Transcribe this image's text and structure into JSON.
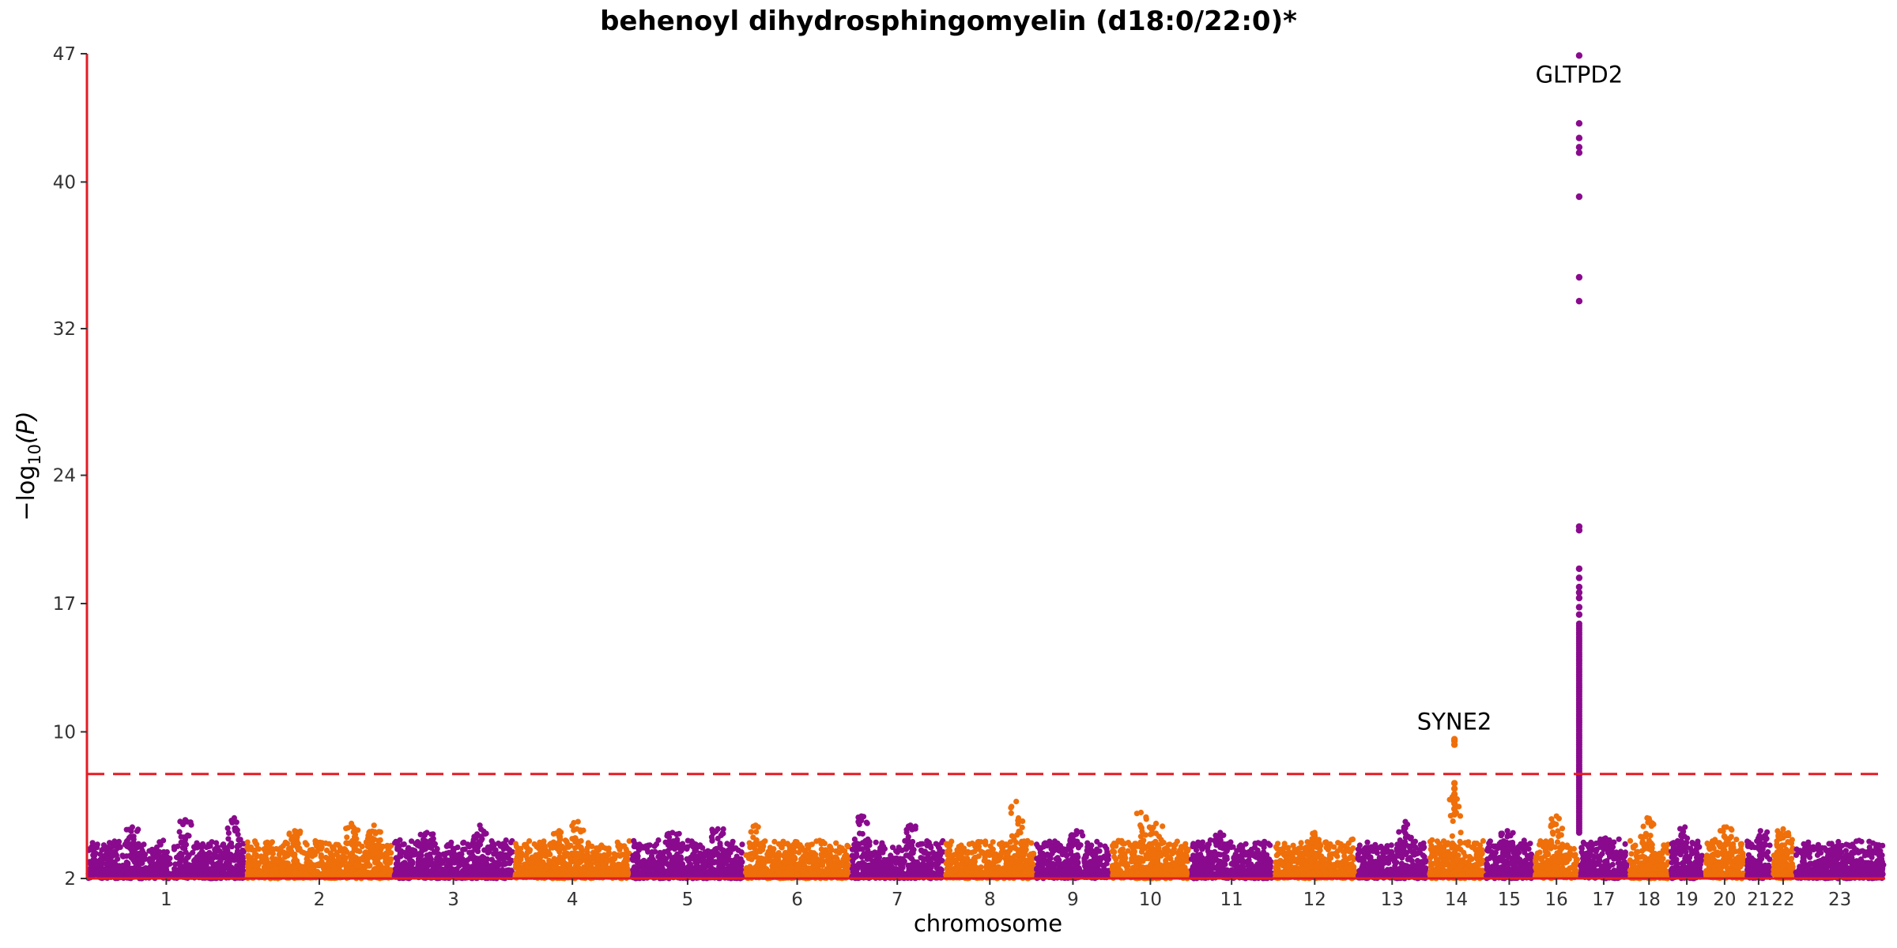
{
  "chart_data": {
    "type": "scatter",
    "title": "behenoyl dihydrosphingomyelin (d18:0/22:0)*",
    "xlabel": "chromosome",
    "ylabel": "−log10(P)",
    "ylabel_main": "−log",
    "ylabel_sub": "10",
    "ylabel_paren": "(P)",
    "yticks": [
      "2",
      "10",
      "17",
      "24",
      "32",
      "40",
      "47"
    ],
    "yrange": [
      2,
      47
    ],
    "significance_threshold": 7.7,
    "colors": {
      "purple": "#8a0a8e",
      "orange": "#ef6f0a",
      "axis": "#e51b24",
      "threshold": "#e51b24"
    },
    "chromosomes": [
      {
        "label": "1",
        "start": 0.0,
        "end": 4.2,
        "color": "purple",
        "peaks": [
          {
            "x": 1.2,
            "y": 4.8
          },
          {
            "x": 2.6,
            "y": 5.2
          },
          {
            "x": 3.9,
            "y": 5.3
          }
        ]
      },
      {
        "label": "2",
        "start": 4.2,
        "end": 8.1,
        "color": "orange",
        "peaks": [
          {
            "x": 5.5,
            "y": 4.6
          },
          {
            "x": 7.0,
            "y": 5.0
          },
          {
            "x": 7.6,
            "y": 4.9
          }
        ]
      },
      {
        "label": "3",
        "start": 8.1,
        "end": 11.3,
        "color": "purple",
        "peaks": [
          {
            "x": 9.0,
            "y": 4.5
          },
          {
            "x": 10.4,
            "y": 4.9
          }
        ]
      },
      {
        "label": "4",
        "start": 11.3,
        "end": 14.4,
        "color": "orange",
        "peaks": [
          {
            "x": 12.5,
            "y": 4.6
          },
          {
            "x": 13.0,
            "y": 5.1
          }
        ]
      },
      {
        "label": "5",
        "start": 14.4,
        "end": 17.4,
        "color": "purple",
        "peaks": [
          {
            "x": 15.5,
            "y": 4.5
          },
          {
            "x": 16.7,
            "y": 4.7
          }
        ]
      },
      {
        "label": "6",
        "start": 17.4,
        "end": 20.2,
        "color": "orange",
        "peaks": [
          {
            "x": 17.7,
            "y": 4.9
          }
        ]
      },
      {
        "label": "7",
        "start": 20.2,
        "end": 22.7,
        "color": "purple",
        "peaks": [
          {
            "x": 20.5,
            "y": 5.4
          },
          {
            "x": 21.8,
            "y": 4.9
          }
        ]
      },
      {
        "label": "8",
        "start": 22.7,
        "end": 25.1,
        "color": "orange",
        "peaks": [
          {
            "x": 24.6,
            "y": 6.2
          }
        ]
      },
      {
        "label": "9",
        "start": 25.1,
        "end": 27.1,
        "color": "purple",
        "peaks": [
          {
            "x": 26.2,
            "y": 4.6
          }
        ]
      },
      {
        "label": "10",
        "start": 27.1,
        "end": 29.2,
        "color": "orange",
        "peaks": [
          {
            "x": 27.9,
            "y": 5.6
          },
          {
            "x": 28.3,
            "y": 5.0
          }
        ]
      },
      {
        "label": "11",
        "start": 29.2,
        "end": 31.4,
        "color": "purple",
        "peaks": [
          {
            "x": 30.0,
            "y": 4.5
          }
        ]
      },
      {
        "label": "12",
        "start": 31.4,
        "end": 33.6,
        "color": "orange",
        "peaks": [
          {
            "x": 32.5,
            "y": 4.5
          }
        ]
      },
      {
        "label": "13",
        "start": 33.6,
        "end": 35.5,
        "color": "purple",
        "peaks": [
          {
            "x": 34.9,
            "y": 5.1
          }
        ]
      },
      {
        "label": "14",
        "start": 35.5,
        "end": 37.0,
        "color": "orange",
        "peaks": [
          {
            "x": 36.2,
            "y": 6.6
          }
        ]
      },
      {
        "label": "15",
        "start": 37.0,
        "end": 38.3,
        "color": "purple",
        "peaks": [
          {
            "x": 37.6,
            "y": 4.6
          }
        ]
      },
      {
        "label": "16",
        "start": 38.3,
        "end": 39.5,
        "color": "orange",
        "peaks": [
          {
            "x": 38.9,
            "y": 5.4
          }
        ]
      },
      {
        "label": "17",
        "start": 39.5,
        "end": 40.8,
        "color": "purple",
        "peaks": [
          {
            "x": 40.2,
            "y": 4.2
          }
        ]
      },
      {
        "label": "18",
        "start": 40.8,
        "end": 41.9,
        "color": "orange",
        "peaks": [
          {
            "x": 41.3,
            "y": 5.3
          }
        ]
      },
      {
        "label": "19",
        "start": 41.9,
        "end": 42.8,
        "color": "purple",
        "peaks": [
          {
            "x": 42.3,
            "y": 4.8
          }
        ]
      },
      {
        "label": "20",
        "start": 42.8,
        "end": 43.9,
        "color": "orange",
        "peaks": [
          {
            "x": 43.4,
            "y": 4.8
          }
        ]
      },
      {
        "label": "21",
        "start": 43.9,
        "end": 44.6,
        "color": "purple",
        "peaks": [
          {
            "x": 44.3,
            "y": 4.6
          }
        ]
      },
      {
        "label": "22",
        "start": 44.6,
        "end": 45.2,
        "color": "orange",
        "peaks": [
          {
            "x": 44.9,
            "y": 4.7
          }
        ]
      },
      {
        "label": "23",
        "start": 45.2,
        "end": 47.6,
        "color": "purple",
        "peaks": [
          {
            "x": 46.2,
            "y": 3.3
          }
        ]
      }
    ],
    "gaps": [
      [
        2.2,
        2.3
      ],
      [
        26.3,
        26.4
      ]
    ],
    "hits": [
      {
        "chromosome": "14",
        "label": "SYNE2",
        "x": 36.2,
        "color": "orange",
        "y_values": [
          9.6,
          9.5,
          9.3,
          7.2,
          6.9,
          6.6,
          6.4,
          6.1,
          5.8,
          5.5
        ]
      },
      {
        "chromosome": "16",
        "label": "GLTPD2",
        "x": 39.5,
        "color": "purple",
        "y_values": [
          46.9,
          43.2,
          42.4,
          41.9,
          41.6,
          39.2,
          34.8,
          33.5,
          21.2,
          21.0,
          18.9,
          18.4,
          17.9,
          17.6,
          17.3,
          16.8,
          16.4
        ]
      }
    ],
    "hit_column": {
      "x": 39.5,
      "from": 4.5,
      "to": 15.9
    }
  }
}
